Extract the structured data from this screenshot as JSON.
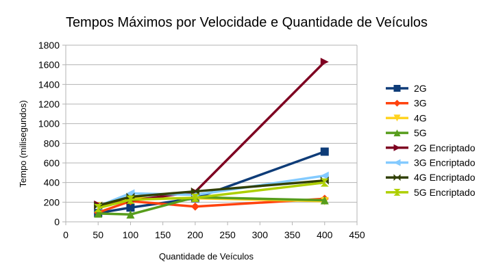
{
  "chart_data": {
    "type": "line",
    "title": "Tempos Máximos por Velocidade e Quantidade de Veículos",
    "xlabel": "Quantidade de Veículos",
    "ylabel": "Tempo (milisegundos)",
    "xlim": [
      0,
      450
    ],
    "ylim": [
      0,
      1800
    ],
    "xticks": [
      0,
      50,
      100,
      150,
      200,
      250,
      300,
      350,
      400,
      450
    ],
    "yticks": [
      0,
      200,
      400,
      600,
      800,
      1000,
      1200,
      1400,
      1600,
      1800
    ],
    "grid": "horizontal",
    "legend_position": "right",
    "x": [
      50,
      100,
      200,
      400
    ],
    "series": [
      {
        "name": "2G",
        "values": [
          90,
          145,
          240,
          715
        ],
        "color": "#0e3c78",
        "marker": "square"
      },
      {
        "name": "3G",
        "values": [
          95,
          210,
          155,
          235
        ],
        "color": "#ff420e",
        "marker": "diamond"
      },
      {
        "name": "4G",
        "values": [
          160,
          240,
          240,
          210
        ],
        "color": "#ffd320",
        "marker": "triangle-down"
      },
      {
        "name": "5G",
        "values": [
          85,
          75,
          250,
          220
        ],
        "color": "#579d1c",
        "marker": "triangle-up"
      },
      {
        "name": "2G Encriptado",
        "values": [
          175,
          215,
          305,
          1630
        ],
        "color": "#7e0021",
        "marker": "triangle-right"
      },
      {
        "name": "3G Encriptado",
        "values": [
          160,
          290,
          275,
          470
        ],
        "color": "#83caff",
        "marker": "triangle-left"
      },
      {
        "name": "4G Encriptado",
        "values": [
          165,
          255,
          310,
          420
        ],
        "color": "#314004",
        "marker": "bowtie"
      },
      {
        "name": "5G Encriptado",
        "values": [
          140,
          225,
          245,
          400
        ],
        "color": "#aecf00",
        "marker": "hourglass"
      }
    ]
  }
}
